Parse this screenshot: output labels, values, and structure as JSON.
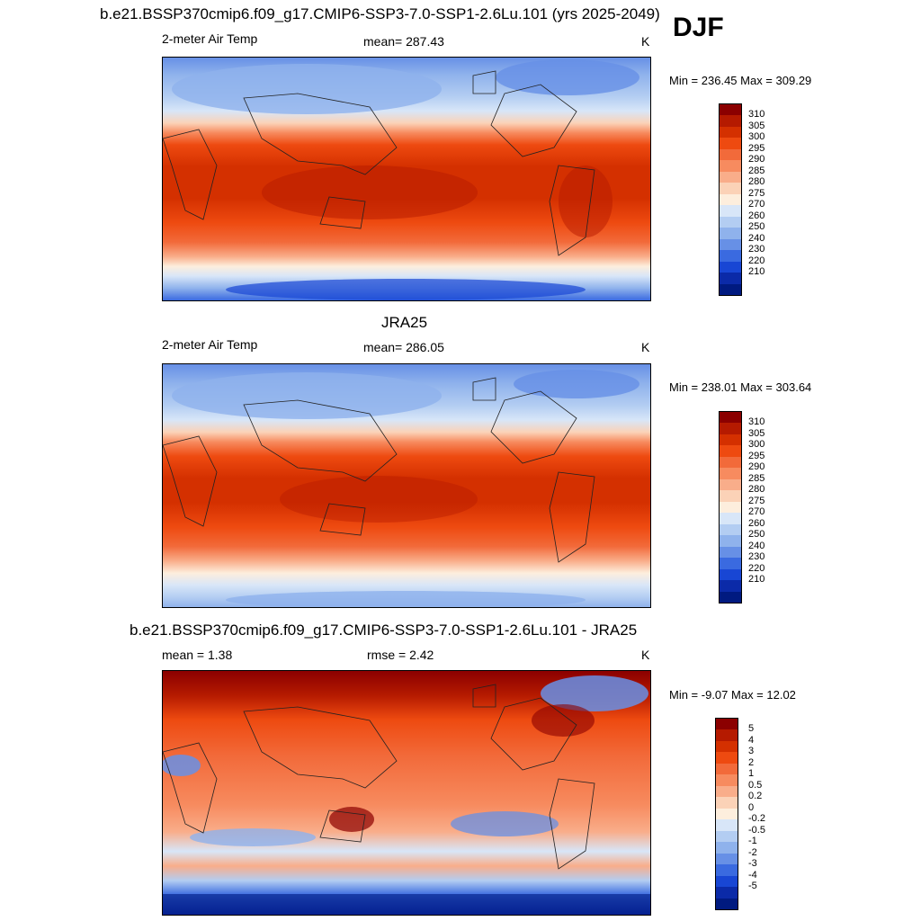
{
  "season": "DJF",
  "panels": [
    {
      "id": "model",
      "title": "b.e21.BSSP370cmip6.f09_g17.CMIP6-SSP3-7.0-SSP1-2.6Lu.101 (yrs 2025-2049)",
      "left_label": "2-meter Air Temp",
      "center_label": "mean= 287.43",
      "unit": "K",
      "minmax": "Min = 236.45 Max = 309.29",
      "colorbar_labels": [
        "310",
        "305",
        "300",
        "295",
        "290",
        "285",
        "280",
        "275",
        "270",
        "260",
        "250",
        "240",
        "230",
        "220",
        "210"
      ],
      "colors": [
        "#8b0000",
        "#b51a00",
        "#d43000",
        "#ee4a10",
        "#f26a3a",
        "#f78b5f",
        "#f9ad8a",
        "#fbd2b7",
        "#fdeedd",
        "#d8e6f8",
        "#b3cdf2",
        "#8fb2ec",
        "#6790e6",
        "#3a6ae0",
        "#1846d4",
        "#0b2aa8",
        "#001a80"
      ]
    },
    {
      "id": "obs",
      "title": "JRA25",
      "left_label": "2-meter Air Temp",
      "center_label": "mean= 286.05",
      "unit": "K",
      "minmax": "Min = 238.01 Max = 303.64",
      "colorbar_labels": [
        "310",
        "305",
        "300",
        "295",
        "290",
        "285",
        "280",
        "275",
        "270",
        "260",
        "250",
        "240",
        "230",
        "220",
        "210"
      ],
      "colors": [
        "#8b0000",
        "#b51a00",
        "#d43000",
        "#ee4a10",
        "#f26a3a",
        "#f78b5f",
        "#f9ad8a",
        "#fbd2b7",
        "#fdeedd",
        "#d8e6f8",
        "#b3cdf2",
        "#8fb2ec",
        "#6790e6",
        "#3a6ae0",
        "#1846d4",
        "#0b2aa8",
        "#001a80"
      ]
    },
    {
      "id": "diff",
      "title": "b.e21.BSSP370cmip6.f09_g17.CMIP6-SSP3-7.0-SSP1-2.6Lu.101 - JRA25",
      "left_label": "mean =   1.38",
      "center_label": "rmse =   2.42",
      "unit": "K",
      "minmax": "Min =  -9.07 Max =  12.02",
      "colorbar_labels": [
        "5",
        "4",
        "3",
        "2",
        "1",
        "0.5",
        "0.2",
        "0",
        "-0.2",
        "-0.5",
        "-1",
        "-2",
        "-3",
        "-4",
        "-5"
      ],
      "colors": [
        "#8b0000",
        "#b51a00",
        "#d43000",
        "#ee4a10",
        "#f26a3a",
        "#f78b5f",
        "#f9ad8a",
        "#fbd2b7",
        "#fdeedd",
        "#d8e6f8",
        "#b3cdf2",
        "#8fb2ec",
        "#6790e6",
        "#3a6ae0",
        "#1846d4",
        "#0b2aa8",
        "#001a80"
      ]
    }
  ]
}
